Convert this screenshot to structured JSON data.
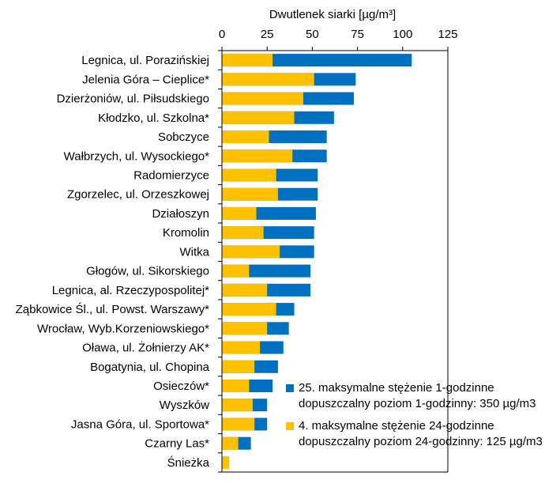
{
  "chart_data": {
    "type": "bar",
    "orientation": "horizontal",
    "stacked": false,
    "overlay": true,
    "title_top": "Dwutlenek siarki [µg/m³]",
    "xlim": [
      0,
      125
    ],
    "x_ticks": [
      "0",
      "25",
      "50",
      "75",
      "100",
      "125"
    ],
    "x_tick_values": [
      0,
      25,
      50,
      75,
      100,
      125
    ],
    "grid": false,
    "legend_position": "bottom-right",
    "categories": [
      "Legnica, ul. Poraziński­ej",
      "Jelenia Góra – Cieplice*",
      "Dzierżoniów, ul. Piłsudskiego",
      "Kłodzko, ul. Szkolna*",
      "Sobczyce",
      "Wałbrzych, ul. Wysockiego*",
      "Radomierzyce",
      "Zgorzelec, ul. Orzeszkowej",
      "Działoszyn",
      "Kromolin",
      "Witka",
      "Głogów, ul. Sikorskiego",
      "Legnica, al. Rzeczypospolitej*",
      "Ząbkowice Śl., ul. Powst. Warszawy*",
      "Wrocław, Wyb.Korzeniowskiego*",
      "Oława, ul. Żołnierzy AK*",
      "Bogatynia, ul. Chopina",
      "Osieczów*",
      "Wyszków",
      "Jasna Góra, ul. Sportowa*",
      "Czarny Las*",
      "Śnieżka"
    ],
    "series": [
      {
        "name": "25. maksymalne stężenie 1-godzinne",
        "legend_line2": "dopuszczalny poziom 1-godzinny: 350 µg/m3",
        "color": "#0070c0",
        "values": [
          105,
          74,
          73,
          62,
          58,
          58,
          53,
          53,
          52,
          51,
          51,
          49,
          49,
          40,
          37,
          34,
          31,
          28,
          25,
          25,
          16,
          0
        ]
      },
      {
        "name": "4. maksymalne stężenie 24-godzinne",
        "legend_line2": "dopuszczalny poziom 24-godzinny: 125 µg/m3",
        "color": "#ffc000",
        "values": [
          28,
          51,
          45,
          40,
          26,
          39,
          30,
          31,
          19,
          23,
          32,
          15,
          25,
          30,
          25,
          21,
          18,
          15,
          17,
          18,
          9,
          4
        ]
      }
    ]
  }
}
